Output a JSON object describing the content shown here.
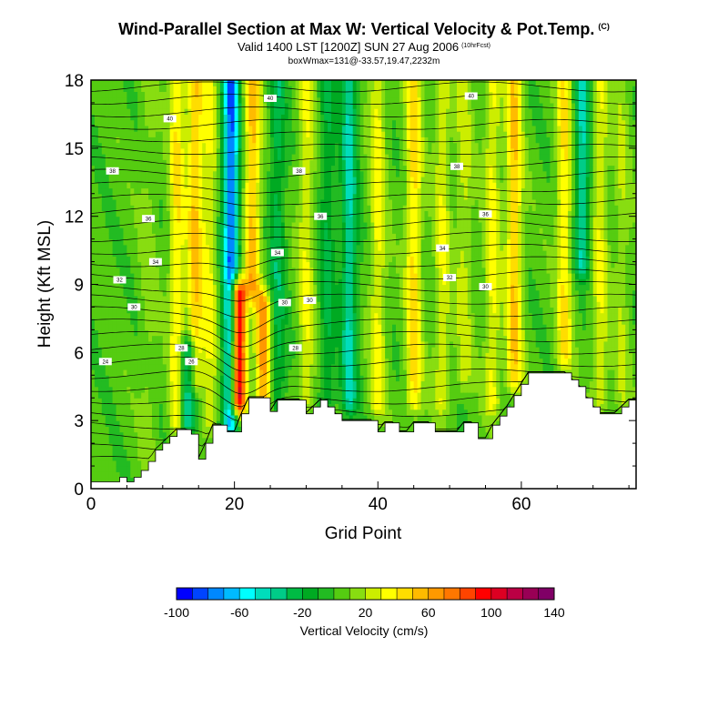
{
  "header": {
    "title": "Wind-Parallel Section at Max W: Vertical Velocity & Pot.Temp.",
    "copyright": "(C)",
    "valid": "Valid 1400 LST [1200Z] SUN 27 Aug 2006",
    "forecast": "(10hrFcst)",
    "box_info": "boxWmax=131@-33.57,19.47,2232m"
  },
  "chart_data": {
    "type": "heatmap",
    "xlabel": "Grid Point",
    "ylabel": "Height (Kft MSL)",
    "xlim": [
      0,
      76
    ],
    "ylim": [
      0,
      18
    ],
    "x_ticks": [
      0,
      20,
      40,
      60
    ],
    "y_ticks": [
      0,
      3,
      6,
      9,
      12,
      15,
      18
    ],
    "colorbar": {
      "title": "Vertical Velocity (cm/s)",
      "min": -100,
      "max": 140,
      "step": 10,
      "tick_labels": [
        "-100",
        "-60",
        "-20",
        "20",
        "60",
        "100",
        "140"
      ],
      "colors": [
        "#0000ff",
        "#0044ff",
        "#0088ff",
        "#00bbff",
        "#00ffff",
        "#00ddbb",
        "#00cc88",
        "#00bb44",
        "#00aa22",
        "#22bb22",
        "#55cc11",
        "#88dd11",
        "#ccee00",
        "#ffff00",
        "#ffdd00",
        "#ffbb00",
        "#ff9900",
        "#ff7700",
        "#ff4400",
        "#ff0000",
        "#dd0022",
        "#bb0044",
        "#990055",
        "#800066"
      ]
    },
    "w_features": [
      {
        "x": 8,
        "z_min": 1.5,
        "z_max": 18,
        "w": 10
      },
      {
        "x": 12,
        "z_min": 3,
        "z_max": 18,
        "w": 35
      },
      {
        "x": 13.5,
        "z_min": 3,
        "z_max": 6,
        "w": -55
      },
      {
        "x": 14.5,
        "z_min": 5,
        "z_max": 18,
        "w": 45
      },
      {
        "x": 16.5,
        "z_min": 3,
        "z_max": 18,
        "w": 25
      },
      {
        "x": 19.5,
        "z_min": 3,
        "z_max": 18,
        "w": -85
      },
      {
        "x": 20.5,
        "z_min": 4,
        "z_max": 8.5,
        "w": 125
      },
      {
        "x": 22.5,
        "z_min": 9,
        "z_max": 18,
        "w": 50
      },
      {
        "x": 24,
        "z_min": 3,
        "z_max": 8,
        "w": 60
      },
      {
        "x": 26,
        "z_min": 4,
        "z_max": 18,
        "w": -30
      },
      {
        "x": 30,
        "z_min": 4,
        "z_max": 18,
        "w": 25
      },
      {
        "x": 33,
        "z_min": 4,
        "z_max": 18,
        "w": -25
      },
      {
        "x": 36,
        "z_min": 4,
        "z_max": 18,
        "w": -45
      },
      {
        "x": 40,
        "z_min": 4,
        "z_max": 18,
        "w": 30
      },
      {
        "x": 45,
        "z_min": 4,
        "z_max": 18,
        "w": 40
      },
      {
        "x": 49,
        "z_min": 4,
        "z_max": 18,
        "w": 25
      },
      {
        "x": 52,
        "z_min": 5,
        "z_max": 18,
        "w": 20
      },
      {
        "x": 56,
        "z_min": 4,
        "z_max": 18,
        "w": 30
      },
      {
        "x": 59,
        "z_min": 5,
        "z_max": 18,
        "w": 45
      },
      {
        "x": 66,
        "z_min": 6,
        "z_max": 18,
        "w": 35
      },
      {
        "x": 68.5,
        "z_min": 10,
        "z_max": 18,
        "w": -45
      },
      {
        "x": 71,
        "z_min": 4,
        "z_max": 18,
        "w": 25
      },
      {
        "x": 74,
        "z_min": 4,
        "z_max": 18,
        "w": 15
      }
    ],
    "terrain": {
      "x": [
        0,
        4,
        5,
        6,
        7,
        8,
        9,
        10,
        11,
        12,
        13,
        14,
        15,
        16,
        17,
        18,
        19,
        20,
        21,
        22,
        23,
        24,
        25,
        26,
        27,
        28,
        29,
        30,
        31,
        32,
        33,
        34,
        35,
        36,
        37,
        38,
        39,
        40,
        41,
        42,
        43,
        44,
        45,
        46,
        47,
        48,
        49,
        50,
        51,
        52,
        53,
        54,
        55,
        56,
        57,
        58,
        59,
        60,
        61,
        62,
        63,
        64,
        65,
        66,
        67,
        68,
        69,
        70,
        71,
        72,
        73,
        74,
        75,
        76
      ],
      "height_kft": [
        0.3,
        0.5,
        0.3,
        0.5,
        0.8,
        1.2,
        1.7,
        2.0,
        2.3,
        2.6,
        2.6,
        2.4,
        1.3,
        2.0,
        2.8,
        2.8,
        2.5,
        2.5,
        3.3,
        4.0,
        4.0,
        4.0,
        3.4,
        3.9,
        3.9,
        3.9,
        3.9,
        3.3,
        3.6,
        3.9,
        3.6,
        3.3,
        3.0,
        3.0,
        3.0,
        3.0,
        3.0,
        2.5,
        2.9,
        2.9,
        2.5,
        2.5,
        2.9,
        2.9,
        2.9,
        2.5,
        2.5,
        2.5,
        2.5,
        2.9,
        2.9,
        2.2,
        2.2,
        2.8,
        3.2,
        3.6,
        4.1,
        4.6,
        5.1,
        5.1,
        5.1,
        5.1,
        5.1,
        5.1,
        4.8,
        4.5,
        4.0,
        3.6,
        3.3,
        3.3,
        3.3,
        3.6,
        3.9,
        3.9
      ]
    },
    "isentropes_theta": [
      28,
      30,
      32,
      34,
      36,
      38,
      40
    ],
    "contour_labels": [
      "24",
      "26",
      "28",
      "30",
      "32",
      "34",
      "36",
      "38",
      "40"
    ]
  }
}
